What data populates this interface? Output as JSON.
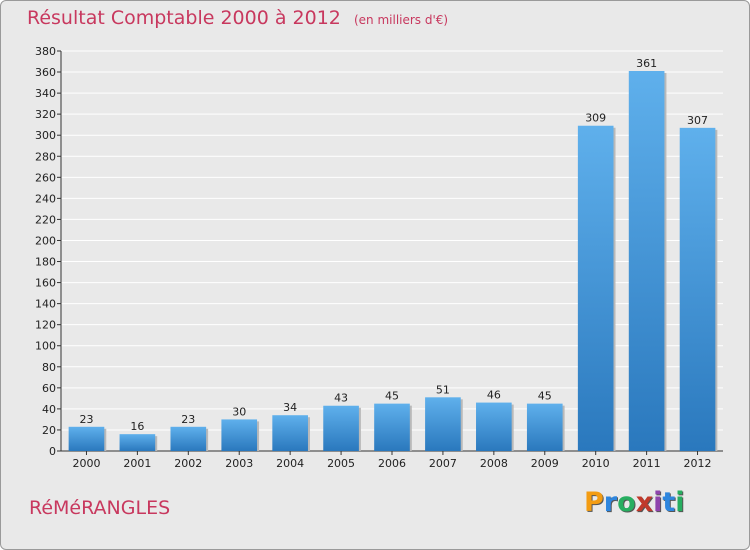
{
  "title": "Résultat Comptable 2000 à 2012",
  "subtitle": "(en milliers d'€)",
  "place": "RéMéRANGLES",
  "logo": {
    "text": "Proxiti",
    "letters": [
      "P",
      "r",
      "o",
      "x",
      "i",
      "t",
      "i"
    ],
    "colors": [
      "#f39c12",
      "#2e86de",
      "#27ae60",
      "#c0392b",
      "#8e44ad",
      "#2e86de",
      "#27ae60"
    ]
  },
  "colors": {
    "title": "#c8385e",
    "bar_top": "#5fb0ec",
    "bar_bottom": "#2a78bd",
    "grid": "#ffffff"
  },
  "chart_data": {
    "type": "bar",
    "categories": [
      "2000",
      "2001",
      "2002",
      "2003",
      "2004",
      "2005",
      "2006",
      "2007",
      "2008",
      "2009",
      "2010",
      "2011",
      "2012"
    ],
    "values": [
      23,
      16,
      23,
      30,
      34,
      43,
      45,
      51,
      46,
      45,
      309,
      361,
      307
    ],
    "ylim": [
      0,
      380
    ],
    "yticks": [
      0,
      20,
      40,
      60,
      80,
      100,
      120,
      140,
      160,
      180,
      200,
      220,
      240,
      260,
      280,
      300,
      320,
      340,
      360,
      380
    ],
    "grid": true
  }
}
